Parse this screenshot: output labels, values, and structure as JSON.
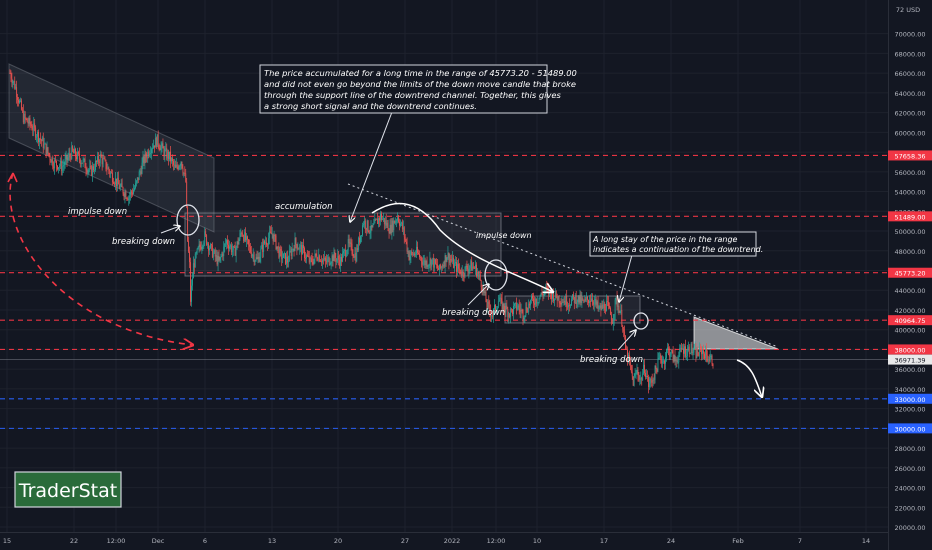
{
  "chart_data": {
    "type": "candlestick",
    "currency_label": "72 USD",
    "x_ticks": [
      "15",
      "22",
      "12:00",
      "Dec",
      "6",
      "13",
      "20",
      "27",
      "2022",
      "12:00",
      "10",
      "17",
      "24",
      "Feb",
      "7",
      "14"
    ],
    "y_ticks": [
      "70000.00",
      "68000.00",
      "66000.00",
      "64000.00",
      "62000.00",
      "60000.00",
      "58000.00",
      "56000.00",
      "54000.00",
      "52000.00",
      "50000.00",
      "48000.00",
      "46000.00",
      "44000.00",
      "42000.00",
      "40000.00",
      "38000.00",
      "36000.00",
      "34000.00",
      "32000.00",
      "30000.00",
      "28000.00",
      "26000.00",
      "24000.00",
      "22000.00",
      "20000.00"
    ],
    "y_tick_values": [
      70000,
      68000,
      66000,
      64000,
      62000,
      60000,
      58000,
      56000,
      54000,
      52000,
      50000,
      48000,
      46000,
      44000,
      42000,
      40000,
      38000,
      36000,
      34000,
      32000,
      30000,
      28000,
      26000,
      24000,
      22000,
      20000
    ],
    "ylim": [
      19700,
      72400
    ],
    "price_levels": [
      {
        "label": "57658.36",
        "value": 57658.36,
        "color": "#f23645",
        "label_bg": "#f23645",
        "style": "dashed"
      },
      {
        "label": "51489.00",
        "value": 51489.0,
        "color": "#f23645",
        "label_bg": "#f23645",
        "style": "dashed"
      },
      {
        "label": "45773.20",
        "value": 45773.2,
        "color": "#f23645",
        "label_bg": "#f23645",
        "style": "dashed"
      },
      {
        "label": "40964.75",
        "value": 40964.75,
        "color": "#f23645",
        "label_bg": "#f23645",
        "style": "dashed"
      },
      {
        "label": "38000.00",
        "value": 38000.0,
        "color": "#f23645",
        "label_bg": "#f23645",
        "style": "dashed"
      },
      {
        "label": "36971.39",
        "value": 36971.39,
        "color": "#787b86",
        "label_bg": "#e9e9ea",
        "style": "solid"
      },
      {
        "label": "33000.00",
        "value": 33000.0,
        "color": "#2962ff",
        "label_bg": "#2962ff",
        "style": "dashed"
      },
      {
        "label": "30000.00",
        "value": 30000.0,
        "color": "#2962ff",
        "label_bg": "#2962ff",
        "style": "dashed"
      }
    ],
    "colors": {
      "up": "#26a69a",
      "down": "#ef5350",
      "background": "#131722",
      "grid": "#1e222d",
      "curve_arrow": "#f23645",
      "box_fill": "#787b86"
    },
    "annotations": {
      "note_top": [
        "The price accumulated for a long time in the range of 45773.20 - 51489.00",
        "and did not even go beyond the limits of the down move candle that broke",
        "through the support line of the downtrend channel. Together, this gives",
        "a strong short signal and the downtrend continues."
      ],
      "note_right": [
        "A long stay of the price in the range",
        "indicates a continuation of the downtrend."
      ],
      "impulse_down_1": "impulse down",
      "impulse_down_2": "impulse down",
      "breaking_down_1": "breaking down",
      "breaking_down_2": "breaking down",
      "breaking_down_3": "breaking down",
      "accumulation": "accumulation"
    },
    "watermark": "TraderStat",
    "series_path": [
      [
        66000,
        0
      ],
      [
        64500,
        6
      ],
      [
        61500,
        14
      ],
      [
        60500,
        24
      ],
      [
        59000,
        34
      ],
      [
        57000,
        45
      ],
      [
        56500,
        55
      ],
      [
        58000,
        65
      ],
      [
        57200,
        75
      ],
      [
        56000,
        85
      ],
      [
        57500,
        95
      ],
      [
        56000,
        105
      ],
      [
        54500,
        115
      ],
      [
        53500,
        125
      ],
      [
        54500,
        132
      ],
      [
        57000,
        140
      ],
      [
        58500,
        148
      ],
      [
        59200,
        155
      ],
      [
        58000,
        162
      ],
      [
        57500,
        168
      ],
      [
        56200,
        174
      ],
      [
        57200,
        180
      ],
      [
        55000,
        185
      ],
      [
        49000,
        187
      ],
      [
        46500,
        189
      ],
      [
        43000,
        190
      ],
      [
        46500,
        193
      ],
      [
        48000,
        198
      ],
      [
        49500,
        205
      ],
      [
        48000,
        212
      ],
      [
        46800,
        220
      ],
      [
        49000,
        228
      ],
      [
        47800,
        236
      ],
      [
        50000,
        244
      ],
      [
        48200,
        252
      ],
      [
        47000,
        260
      ],
      [
        48800,
        268
      ],
      [
        49800,
        276
      ],
      [
        47600,
        284
      ],
      [
        47000,
        292
      ],
      [
        48800,
        300
      ],
      [
        48000,
        308
      ],
      [
        46800,
        316
      ],
      [
        47600,
        324
      ],
      [
        46800,
        332
      ],
      [
        47400,
        340
      ],
      [
        47000,
        348
      ],
      [
        48600,
        356
      ],
      [
        47500,
        364
      ],
      [
        51000,
        372
      ],
      [
        50000,
        380
      ],
      [
        51500,
        390
      ],
      [
        50200,
        400
      ],
      [
        51500,
        408
      ],
      [
        50000,
        414
      ],
      [
        47500,
        420
      ],
      [
        47800,
        428
      ],
      [
        46800,
        436
      ],
      [
        47000,
        444
      ],
      [
        46000,
        452
      ],
      [
        47600,
        460
      ],
      [
        46500,
        468
      ],
      [
        45800,
        476
      ],
      [
        46500,
        484
      ],
      [
        46200,
        490
      ],
      [
        44800,
        496
      ],
      [
        42500,
        502
      ],
      [
        41500,
        508
      ],
      [
        43000,
        514
      ],
      [
        42200,
        520
      ],
      [
        41700,
        526
      ],
      [
        42400,
        534
      ],
      [
        41600,
        540
      ],
      [
        42800,
        548
      ],
      [
        43200,
        556
      ],
      [
        44000,
        564
      ],
      [
        43500,
        572
      ],
      [
        43100,
        580
      ],
      [
        42800,
        588
      ],
      [
        43200,
        596
      ],
      [
        42700,
        604
      ],
      [
        43300,
        612
      ],
      [
        42000,
        620
      ],
      [
        42500,
        628
      ],
      [
        41000,
        634
      ],
      [
        43000,
        638
      ],
      [
        42000,
        642
      ],
      [
        40500,
        645
      ],
      [
        38000,
        648
      ],
      [
        36500,
        652
      ],
      [
        34700,
        656
      ],
      [
        35800,
        660
      ],
      [
        34900,
        664
      ],
      [
        36200,
        668
      ],
      [
        34400,
        672
      ],
      [
        34900,
        676
      ],
      [
        36000,
        680
      ],
      [
        37200,
        684
      ],
      [
        36800,
        688
      ],
      [
        38000,
        692
      ],
      [
        37600,
        696
      ],
      [
        36800,
        700
      ],
      [
        37400,
        704
      ],
      [
        38100,
        708
      ],
      [
        37800,
        712
      ],
      [
        38200,
        716
      ],
      [
        37600,
        720
      ],
      [
        37500,
        724
      ],
      [
        37900,
        728
      ],
      [
        37500,
        732
      ],
      [
        37000,
        736
      ],
      [
        36900,
        740
      ]
    ]
  }
}
